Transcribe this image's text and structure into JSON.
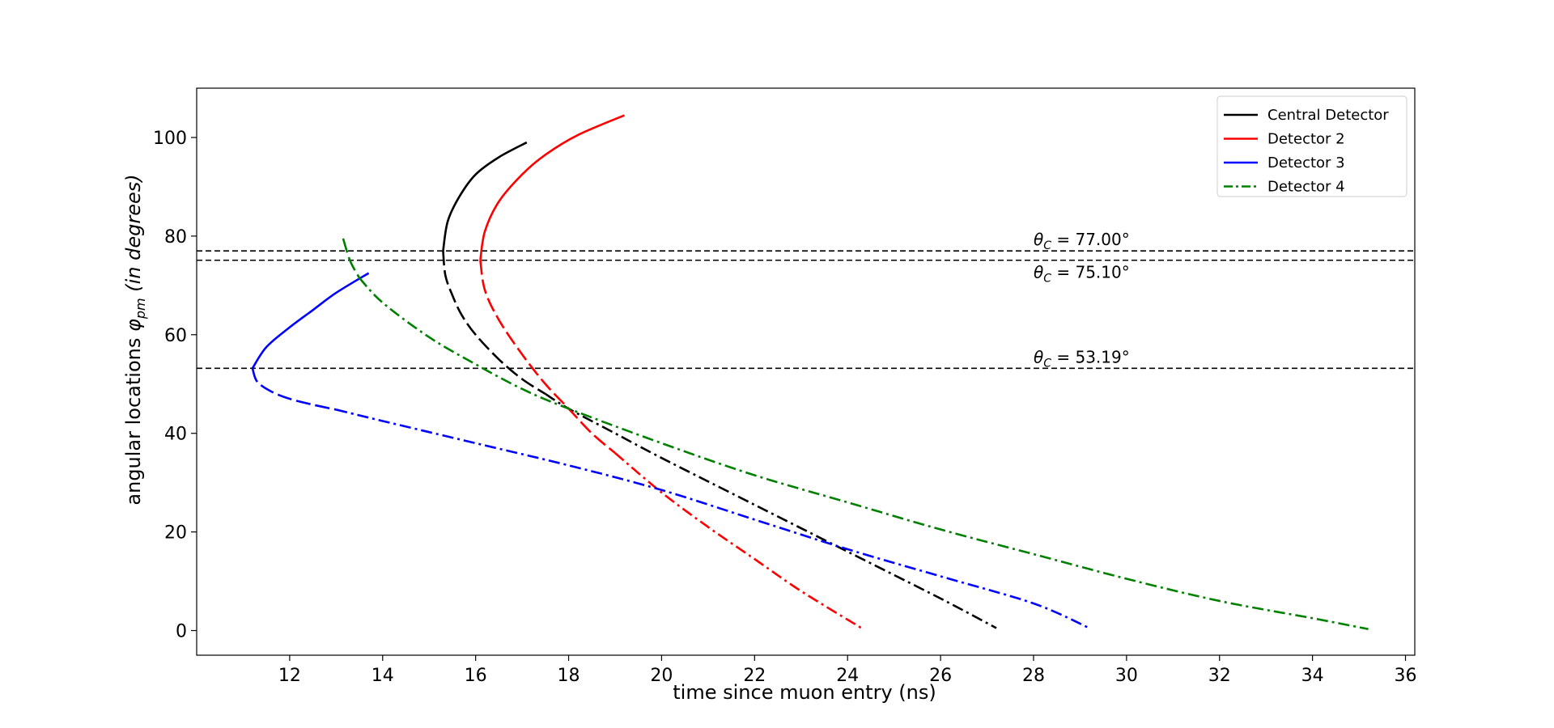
{
  "chart_data": {
    "type": "line",
    "title": "",
    "xlabel": "time since muon entry (ns)",
    "ylabel_prefix": "angular locations ",
    "ylabel_symbol": "φ",
    "ylabel_sub": "pm",
    "ylabel_suffix": " (in degrees)",
    "xlim": [
      10,
      36.2
    ],
    "ylim": [
      -5,
      110
    ],
    "xticks": [
      12,
      14,
      16,
      18,
      20,
      22,
      24,
      26,
      28,
      30,
      32,
      34,
      36
    ],
    "yticks": [
      0,
      20,
      40,
      60,
      80,
      100
    ],
    "grid": false,
    "legend_position": "top-right",
    "series": [
      {
        "name": "Central Detector",
        "color": "#000000",
        "legend_style": "solid",
        "vertex_angle": 77.0,
        "upper": {
          "style": "solid",
          "points": [
            [
              15.3,
              77
            ],
            [
              15.4,
              83
            ],
            [
              15.65,
              88
            ],
            [
              16.0,
              92.5
            ],
            [
              16.5,
              96
            ],
            [
              17.1,
              99
            ]
          ]
        },
        "lower": {
          "segments": [
            {
              "style": "long-dash",
              "points": [
                [
                  15.3,
                  77
                ],
                [
                  15.35,
                  72
                ],
                [
                  15.5,
                  68
                ],
                [
                  15.7,
                  64
                ],
                [
                  16.0,
                  60
                ],
                [
                  16.5,
                  55
                ],
                [
                  17.0,
                  51
                ],
                [
                  17.5,
                  48
                ]
              ]
            },
            {
              "style": "dashdot",
              "points": [
                [
                  17.5,
                  48
                ],
                [
                  18.0,
                  45
                ],
                [
                  19.0,
                  40
                ],
                [
                  20.0,
                  35
                ],
                [
                  22.0,
                  25.5
                ],
                [
                  24.0,
                  16
                ],
                [
                  26.0,
                  6.5
                ],
                [
                  27.2,
                  0.5
                ]
              ]
            }
          ]
        }
      },
      {
        "name": "Detector 2",
        "color": "#ff0000",
        "legend_style": "solid",
        "vertex_angle": 75.1,
        "upper": {
          "style": "solid",
          "points": [
            [
              16.1,
              75.1
            ],
            [
              16.2,
              81
            ],
            [
              16.5,
              87
            ],
            [
              17.0,
              92.5
            ],
            [
              17.5,
              96.5
            ],
            [
              18.2,
              100.5
            ],
            [
              19.2,
              104.5
            ]
          ]
        },
        "lower": {
          "segments": [
            {
              "style": "long-dash",
              "points": [
                [
                  16.1,
                  75.1
                ],
                [
                  16.2,
                  69
                ],
                [
                  16.5,
                  63
                ],
                [
                  17.0,
                  56
                ],
                [
                  17.5,
                  50
                ],
                [
                  18.0,
                  45
                ],
                [
                  18.5,
                  40
                ],
                [
                  19.0,
                  36
                ]
              ]
            },
            {
              "style": "dashdot",
              "points": [
                [
                  19.0,
                  36
                ],
                [
                  20.0,
                  28
                ],
                [
                  21.0,
                  21
                ],
                [
                  22.0,
                  14.5
                ],
                [
                  23.0,
                  8
                ],
                [
                  24.3,
                  0.5
                ]
              ]
            }
          ]
        }
      },
      {
        "name": "Detector 3",
        "color": "#0000ff",
        "legend_style": "solid",
        "vertex_angle": 53.19,
        "upper": {
          "style": "solid",
          "points": [
            [
              11.2,
              53.19
            ],
            [
              11.5,
              57.5
            ],
            [
              12.0,
              61.5
            ],
            [
              12.5,
              65
            ],
            [
              13.0,
              68.5
            ],
            [
              13.7,
              72.5
            ]
          ]
        },
        "lower": {
          "segments": [
            {
              "style": "long-dash",
              "points": [
                [
                  11.2,
                  53.19
                ],
                [
                  11.3,
                  50.5
                ],
                [
                  11.6,
                  48.5
                ],
                [
                  12.0,
                  47
                ],
                [
                  12.5,
                  45.8
                ],
                [
                  13.0,
                  44.8
                ]
              ]
            },
            {
              "style": "dashdot",
              "points": [
                [
                  13.0,
                  44.8
                ],
                [
                  14.0,
                  42.5
                ],
                [
                  16.0,
                  38
                ],
                [
                  18.0,
                  33.5
                ],
                [
                  20.0,
                  28.5
                ],
                [
                  22.0,
                  22.5
                ],
                [
                  24.0,
                  16.5
                ],
                [
                  26.0,
                  11
                ],
                [
                  28.0,
                  5.5
                ],
                [
                  29.2,
                  0.5
                ]
              ]
            }
          ]
        }
      },
      {
        "name": "Detector 4",
        "color": "#008000",
        "legend_style": "dashdot",
        "vertex_angle": null,
        "upper": null,
        "lower": {
          "segments": [
            {
              "style": "long-dash",
              "points": [
                [
                  13.15,
                  79.5
                ],
                [
                  13.3,
                  75
                ],
                [
                  13.5,
                  71.5
                ]
              ]
            },
            {
              "style": "dashdot",
              "points": [
                [
                  13.5,
                  71.5
                ],
                [
                  14.0,
                  66.5
                ],
                [
                  15.0,
                  59.5
                ],
                [
                  16.0,
                  54
                ],
                [
                  17.0,
                  49
                ],
                [
                  18.0,
                  45
                ],
                [
                  20.0,
                  38
                ],
                [
                  22.0,
                  31.5
                ],
                [
                  24.0,
                  26
                ],
                [
                  26.0,
                  20.5
                ],
                [
                  28.0,
                  15.5
                ],
                [
                  30.0,
                  10.5
                ],
                [
                  32.0,
                  6
                ],
                [
                  34.0,
                  2.5
                ],
                [
                  35.2,
                  0.3
                ]
              ]
            }
          ]
        }
      }
    ],
    "hlines": [
      {
        "y": 77.0,
        "label_prefix": "θ",
        "label_sub": "C",
        "label_eq": " = 77.00°",
        "label_x": 28.0,
        "label_side": "above"
      },
      {
        "y": 75.1,
        "label_prefix": "θ",
        "label_sub": "C",
        "label_eq": " = 75.10°",
        "label_x": 28.0,
        "label_side": "below"
      },
      {
        "y": 53.19,
        "label_prefix": "θ",
        "label_sub": "C",
        "label_eq": " = 53.19°",
        "label_x": 28.0,
        "label_side": "above"
      }
    ]
  }
}
